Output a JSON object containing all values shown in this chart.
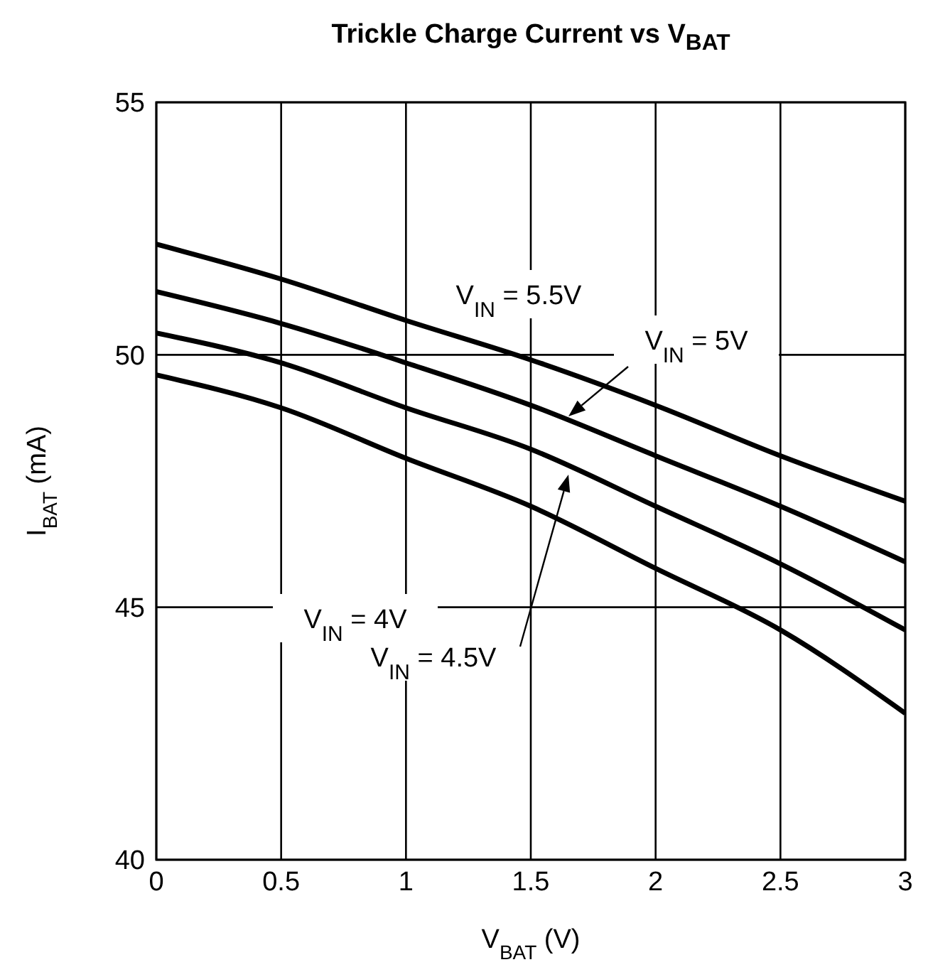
{
  "chart_data": {
    "type": "line",
    "title": "Trickle Charge Current vs V$_{BAT}$",
    "xlabel": "V$_{BAT}$ (V)",
    "ylabel": "I$_{BAT}$ (mA)",
    "x": [
      0,
      0.5,
      1,
      1.5,
      2,
      2.5,
      3
    ],
    "series": [
      {
        "color": "#000000",
        "values": [
          52.19,
          51.5,
          50.68,
          49.9,
          49.0,
          48.0,
          47.1
        ]
      },
      {
        "color": "#000000",
        "values": [
          51.25,
          50.62,
          49.84,
          49.0,
          48.0,
          47.0,
          45.9
        ]
      },
      {
        "color": "#000000",
        "values": [
          50.43,
          49.84,
          48.95,
          48.13,
          47.0,
          45.86,
          44.55
        ]
      },
      {
        "color": "#000000",
        "values": [
          49.6,
          48.95,
          47.95,
          47.0,
          45.77,
          44.55,
          42.9
        ]
      }
    ],
    "xlim": [
      0,
      3
    ],
    "xticks": [
      0,
      0.5,
      1,
      1.5,
      2,
      2.5,
      3
    ],
    "ylim": [
      40,
      55
    ],
    "yticks": [
      40,
      45,
      50,
      55
    ],
    "grid": true,
    "marker": "none",
    "line_style": "solid",
    "annotations": [
      "V$_{IN}$ = 5.5V",
      "V$_{IN}$ = 5V",
      "V$_{IN}$ = 4V",
      "V$_{IN}$ = 4.5V"
    ]
  }
}
